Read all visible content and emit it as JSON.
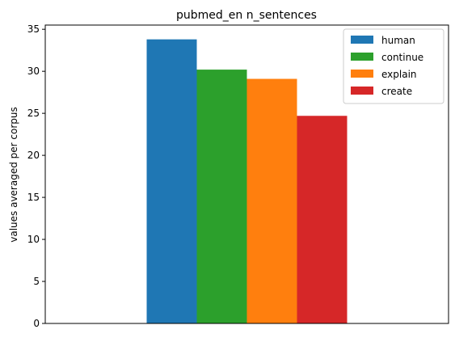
{
  "chart_data": {
    "type": "bar",
    "title": "pubmed_en n_sentences",
    "xlabel": "",
    "ylabel": "values averaged per corpus",
    "categories": [
      ""
    ],
    "ylim": [
      0,
      35.5
    ],
    "yticks": [
      0,
      5,
      10,
      15,
      20,
      25,
      30,
      35
    ],
    "grid": false,
    "legend_position": "top-right",
    "series": [
      {
        "name": "human",
        "values": [
          33.8
        ],
        "color": "#1f77b4"
      },
      {
        "name": "continue",
        "values": [
          30.2
        ],
        "color": "#2ca02c"
      },
      {
        "name": "explain",
        "values": [
          29.1
        ],
        "color": "#ff7f0e"
      },
      {
        "name": "create",
        "values": [
          24.7
        ],
        "color": "#d62728"
      }
    ]
  }
}
